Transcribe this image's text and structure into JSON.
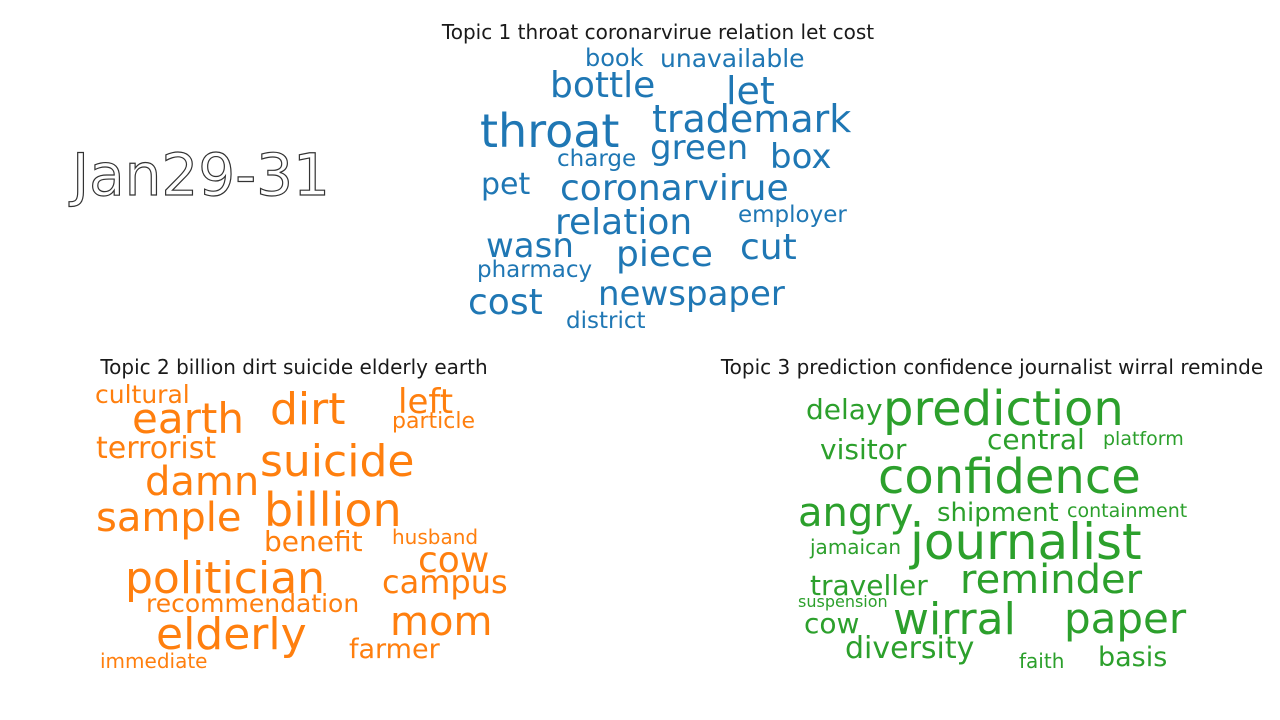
{
  "date_label": "Jan29-31",
  "topics": [
    {
      "title": "Topic 1 throat coronarvirue relation let cost",
      "color": "#1f77b4",
      "words": [
        "throat",
        "trademark",
        "bottle",
        "let",
        "book",
        "unavailable",
        "green",
        "box",
        "charge",
        "coronarvirue",
        "pet",
        "relation",
        "employer",
        "wasn",
        "piece",
        "cut",
        "pharmacy",
        "newspaper",
        "cost",
        "district"
      ]
    },
    {
      "title": "Topic 2 billion dirt suicide elderly earth",
      "color": "#ff7f0e",
      "words": [
        "cultural",
        "earth",
        "dirt",
        "left",
        "particle",
        "terrorist",
        "suicide",
        "damn",
        "sample",
        "billion",
        "benefit",
        "husband",
        "cow",
        "politician",
        "campus",
        "recommendation",
        "elderly",
        "mom",
        "farmer",
        "immediate"
      ]
    },
    {
      "title": "Topic 3 prediction confidence journalist wirral reminde",
      "color": "#2ca02c",
      "words": [
        "delay",
        "prediction",
        "visitor",
        "central",
        "platform",
        "confidence",
        "angry",
        "shipment",
        "containment",
        "jamaican",
        "journalist",
        "traveller",
        "reminder",
        "suspension",
        "cow",
        "wirral",
        "paper",
        "diversity",
        "faith",
        "basis"
      ]
    }
  ]
}
